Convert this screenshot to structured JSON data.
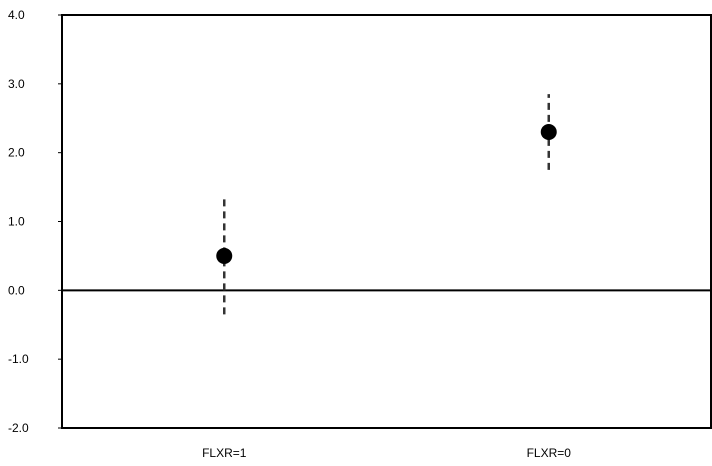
{
  "chart_data": {
    "type": "scatter",
    "title": "",
    "xlabel": "",
    "ylabel": "",
    "categories": [
      "FLXR=1",
      "FLXR=0"
    ],
    "series": [
      {
        "values": [
          0.5,
          2.3
        ],
        "error_low": [
          -0.35,
          1.75
        ],
        "error_high": [
          1.35,
          2.85
        ]
      }
    ],
    "ylim": [
      -2.0,
      4.0
    ],
    "yticks": [
      "-2.0",
      "-1.0",
      "0.0",
      "1.0",
      "2.0",
      "3.0",
      "4.0"
    ],
    "reference_line_y": 0.0,
    "grid": false,
    "legend": "none",
    "colors": {
      "marker": "#000000",
      "error_bar": "#333333",
      "axis": "#000000"
    }
  }
}
